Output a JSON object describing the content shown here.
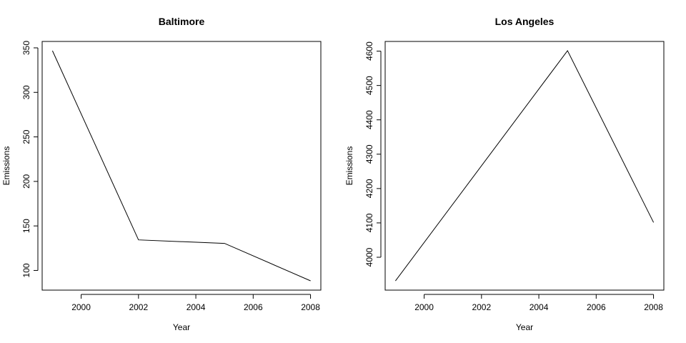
{
  "chart_data": [
    {
      "type": "line",
      "title": "Baltimore",
      "xlabel": "Year",
      "ylabel": "Emissions",
      "x": [
        1999,
        2002,
        2005,
        2008
      ],
      "values": [
        346.8,
        134.3,
        130.4,
        88.3
      ],
      "xlim": [
        1998.64,
        2008.36
      ],
      "ylim": [
        77.9,
        357.2
      ],
      "xticks": [
        2000,
        2002,
        2004,
        2006,
        2008
      ],
      "yticks": [
        100,
        150,
        200,
        250,
        300,
        350
      ],
      "grid": false
    },
    {
      "type": "line",
      "title": "Los Angeles",
      "xlabel": "Year",
      "ylabel": "Emissions",
      "x": [
        1999,
        2005,
        2008
      ],
      "values": [
        3931.1,
        4601.4,
        4101.3
      ],
      "xlim": [
        1998.64,
        2008.36
      ],
      "ylim": [
        3904.3,
        4628.2
      ],
      "xticks": [
        2000,
        2002,
        2004,
        2006,
        2008
      ],
      "yticks": [
        4000,
        4100,
        4200,
        4300,
        4400,
        4500,
        4600
      ],
      "grid": false
    }
  ]
}
